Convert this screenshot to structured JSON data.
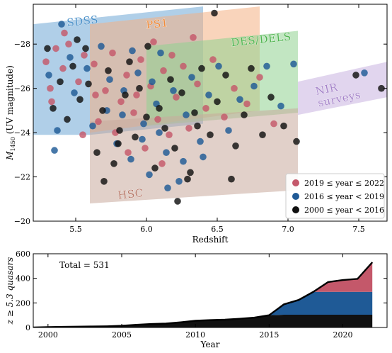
{
  "chart_data": [
    {
      "type": "scatter",
      "xlabel": "Redshift",
      "ylabel_main": "M",
      "ylabel_sub": "1450",
      "ylabel_rest": " (UV magnitude)",
      "xlim": [
        5.2,
        7.7
      ],
      "ylim": [
        -20,
        -29.8
      ],
      "y_inverted": true,
      "xticks": [
        5.5,
        6.0,
        6.5,
        7.0,
        7.5
      ],
      "yticks": [
        -20,
        -22,
        -24,
        -26,
        -28
      ],
      "xtick_labels": [
        "5.5",
        "6.0",
        "6.5",
        "7.0",
        "7.5"
      ],
      "ytick_labels": [
        "−20",
        "−22",
        "−24",
        "−26",
        "−28"
      ],
      "survey_regions": [
        {
          "name": "SDSS",
          "color": "#6fa8d6",
          "text_color": "#4a90c9",
          "polygon": [
            [
              5.2,
              -28.9
            ],
            [
              6.4,
              -29.7
            ],
            [
              6.4,
              -24.4
            ],
            [
              5.6,
              -23.9
            ],
            [
              5.2,
              -23.9
            ]
          ],
          "label_at": [
            5.44,
            -28.8
          ],
          "rotate": -6
        },
        {
          "name": "PS1",
          "color": "#f4b183",
          "text_color": "#f08c3c",
          "polygon": [
            [
              5.6,
              -28.9
            ],
            [
              6.8,
              -29.7
            ],
            [
              6.8,
              -25.0
            ],
            [
              5.6,
              -24.0
            ]
          ],
          "label_at": [
            6.0,
            -28.7
          ],
          "rotate": -6
        },
        {
          "name": "DES/DELS",
          "color": "#8fd18f",
          "text_color": "#4fb54f",
          "polygon": [
            [
              6.0,
              -27.9
            ],
            [
              7.07,
              -28.6
            ],
            [
              7.07,
              -24.9
            ],
            [
              6.0,
              -24.3
            ]
          ],
          "label_at": [
            6.6,
            -27.9
          ],
          "rotate": -6
        },
        {
          "name": "HSC",
          "color": "#c9a99c",
          "text_color": "#b87a6a",
          "polygon": [
            [
              5.6,
              -24.5
            ],
            [
              7.07,
              -25.1
            ],
            [
              7.07,
              -21.4
            ],
            [
              5.6,
              -20.8
            ]
          ],
          "label_at": [
            5.8,
            -21.0
          ],
          "rotate": -6
        },
        {
          "name": "NIR\nsurveys",
          "color": "#c9b3e0",
          "text_color": "#a583c9",
          "polygon": [
            [
              7.07,
              -26.3
            ],
            [
              7.7,
              -27.2
            ],
            [
              7.7,
              -25.6
            ],
            [
              7.07,
              -24.8
            ]
          ],
          "label_at": [
            7.2,
            -25.7
          ],
          "rotate": -12
        }
      ],
      "series": [
        {
          "name": "2019 ≤ year ≤ 2022",
          "color": "#c4586a"
        },
        {
          "name": "2016 ≤ year < 2019",
          "color": "#1f5a96"
        },
        {
          "name": "2000 ≤ year < 2016",
          "color": "#111111"
        }
      ],
      "points": [
        [
          5.29,
          -27.2,
          0
        ],
        [
          5.32,
          -26.0,
          0
        ],
        [
          5.36,
          -27.8,
          0
        ],
        [
          5.33,
          -25.4,
          0
        ],
        [
          5.41,
          -26.9,
          0
        ],
        [
          5.45,
          -28.0,
          0
        ],
        [
          5.52,
          -26.3,
          0
        ],
        [
          5.56,
          -27.5,
          0
        ],
        [
          5.63,
          -27.1,
          0
        ],
        [
          5.66,
          -24.5,
          0
        ],
        [
          5.71,
          -25.9,
          0
        ],
        [
          5.76,
          -27.6,
          0
        ],
        [
          5.82,
          -25.4,
          0
        ],
        [
          5.86,
          -26.6,
          0
        ],
        [
          5.91,
          -24.9,
          0
        ],
        [
          5.96,
          -27.3,
          0
        ],
        [
          5.99,
          -23.3,
          0
        ],
        [
          6.03,
          -26.1,
          0
        ],
        [
          6.08,
          -24.6,
          0
        ],
        [
          6.12,
          -26.8,
          0
        ],
        [
          6.16,
          -23.9,
          0
        ],
        [
          6.21,
          -25.6,
          0
        ],
        [
          6.26,
          -27.0,
          0
        ],
        [
          6.3,
          -24.2,
          0
        ],
        [
          6.36,
          -26.2,
          0
        ],
        [
          6.42,
          -25.1,
          0
        ],
        [
          6.47,
          -27.3,
          0
        ],
        [
          6.55,
          -24.7,
          0
        ],
        [
          6.62,
          -26.0,
          0
        ],
        [
          6.71,
          -25.3,
          0
        ],
        [
          6.8,
          -26.5,
          0
        ],
        [
          6.9,
          -24.4,
          0
        ],
        [
          5.42,
          -28.5,
          0
        ],
        [
          5.93,
          -25.7,
          0
        ],
        [
          6.05,
          -28.1,
          0
        ],
        [
          5.78,
          -24.0,
          0
        ],
        [
          6.18,
          -27.5,
          0
        ],
        [
          5.64,
          -25.7,
          0
        ],
        [
          6.33,
          -28.3,
          0
        ],
        [
          5.55,
          -23.9,
          0
        ],
        [
          6.11,
          -22.6,
          0
        ],
        [
          5.87,
          -23.1,
          0
        ],
        [
          5.31,
          -26.6,
          1
        ],
        [
          5.37,
          -24.1,
          1
        ],
        [
          5.46,
          -27.4,
          1
        ],
        [
          5.49,
          -25.8,
          1
        ],
        [
          5.58,
          -26.9,
          1
        ],
        [
          5.62,
          -24.3,
          1
        ],
        [
          5.68,
          -27.9,
          1
        ],
        [
          5.74,
          -26.4,
          1
        ],
        [
          5.79,
          -23.5,
          1
        ],
        [
          5.84,
          -25.9,
          1
        ],
        [
          5.89,
          -22.8,
          1
        ],
        [
          5.94,
          -26.7,
          1
        ],
        [
          5.98,
          -24.4,
          1
        ],
        [
          6.02,
          -22.1,
          1
        ],
        [
          6.07,
          -25.3,
          1
        ],
        [
          6.1,
          -27.6,
          1
        ],
        [
          6.14,
          -23.1,
          1
        ],
        [
          6.19,
          -25.9,
          1
        ],
        [
          6.23,
          -21.8,
          1
        ],
        [
          6.28,
          -24.8,
          1
        ],
        [
          6.32,
          -26.5,
          1
        ],
        [
          6.38,
          -23.6,
          1
        ],
        [
          6.44,
          -25.7,
          1
        ],
        [
          6.51,
          -27.0,
          1
        ],
        [
          6.58,
          -24.1,
          1
        ],
        [
          6.66,
          -25.5,
          1
        ],
        [
          6.76,
          -26.1,
          1
        ],
        [
          6.85,
          -27.0,
          1
        ],
        [
          6.95,
          -25.2,
          1
        ],
        [
          7.04,
          -27.1,
          1
        ],
        [
          7.54,
          -26.7,
          1
        ],
        [
          5.4,
          -28.9,
          1
        ],
        [
          5.97,
          -23.7,
          1
        ],
        [
          6.04,
          -26.3,
          1
        ],
        [
          5.72,
          -25.0,
          1
        ],
        [
          6.26,
          -22.7,
          1
        ],
        [
          5.9,
          -27.7,
          1
        ],
        [
          6.15,
          -21.5,
          1
        ],
        [
          5.83,
          -24.8,
          1
        ],
        [
          6.4,
          -22.9,
          1
        ],
        [
          5.35,
          -23.2,
          1
        ],
        [
          6.09,
          -24.0,
          1
        ],
        [
          5.3,
          -27.8,
          2
        ],
        [
          5.34,
          -25.1,
          2
        ],
        [
          5.39,
          -26.3,
          2
        ],
        [
          5.44,
          -24.6,
          2
        ],
        [
          5.48,
          -27.0,
          2
        ],
        [
          5.53,
          -25.5,
          2
        ],
        [
          5.59,
          -26.2,
          2
        ],
        [
          5.65,
          -23.1,
          2
        ],
        [
          5.69,
          -25.0,
          2
        ],
        [
          5.73,
          -26.8,
          2
        ],
        [
          5.77,
          -22.6,
          2
        ],
        [
          5.81,
          -24.1,
          2
        ],
        [
          5.85,
          -25.7,
          2
        ],
        [
          5.88,
          -27.2,
          2
        ],
        [
          5.92,
          -23.8,
          2
        ],
        [
          5.95,
          -26.0,
          2
        ],
        [
          6.0,
          -24.7,
          2
        ],
        [
          6.06,
          -22.4,
          2
        ],
        [
          6.09,
          -25.1,
          2
        ],
        [
          6.13,
          -24.2,
          2
        ],
        [
          6.17,
          -26.4,
          2
        ],
        [
          6.2,
          -23.3,
          2
        ],
        [
          6.25,
          -25.8,
          2
        ],
        [
          6.29,
          -21.9,
          2
        ],
        [
          6.34,
          -24.9,
          2
        ],
        [
          6.39,
          -26.9,
          2
        ],
        [
          6.45,
          -23.9,
          2
        ],
        [
          6.5,
          -25.4,
          2
        ],
        [
          6.56,
          -26.6,
          2
        ],
        [
          6.63,
          -23.4,
          2
        ],
        [
          6.69,
          -24.8,
          2
        ],
        [
          6.74,
          -26.9,
          2
        ],
        [
          6.82,
          -23.9,
          2
        ],
        [
          6.88,
          -25.6,
          2
        ],
        [
          6.97,
          -24.3,
          2
        ],
        [
          7.06,
          -23.6,
          2
        ],
        [
          7.48,
          -26.6,
          2
        ],
        [
          7.66,
          -26.0,
          2
        ],
        [
          5.51,
          -28.2,
          2
        ],
        [
          6.01,
          -27.9,
          2
        ],
        [
          6.31,
          -22.2,
          2
        ],
        [
          5.7,
          -21.8,
          2
        ],
        [
          6.22,
          -20.9,
          2
        ],
        [
          6.6,
          -21.9,
          2
        ],
        [
          5.8,
          -23.5,
          2
        ],
        [
          6.48,
          -29.4,
          2
        ],
        [
          5.57,
          -27.8,
          2
        ],
        [
          6.36,
          -24.3,
          2
        ]
      ],
      "legend_position": "lower-right"
    },
    {
      "type": "area",
      "xlabel": "Year",
      "ylabel_main": "z ≥ 5.3 quasars",
      "xlim": [
        1999,
        2023
      ],
      "ylim": [
        0,
        600
      ],
      "xticks": [
        2000,
        2005,
        2010,
        2015,
        2020
      ],
      "yticks": [
        0,
        200,
        400,
        600
      ],
      "xtick_labels": [
        "2000",
        "2005",
        "2010",
        "2015",
        "2020"
      ],
      "ytick_labels": [
        "0",
        "200",
        "400",
        "600"
      ],
      "annotation": "Total = 531",
      "x": [
        1999,
        2000,
        2001,
        2002,
        2003,
        2004,
        2005,
        2006,
        2007,
        2008,
        2009,
        2010,
        2011,
        2012,
        2013,
        2014,
        2015,
        2016,
        2017,
        2018,
        2019,
        2020,
        2021,
        2022
      ],
      "series": [
        {
          "name": "2000 ≤ year < 2016",
          "color": "#111111",
          "values": [
            0,
            3,
            5,
            7,
            8,
            10,
            14,
            22,
            28,
            32,
            42,
            55,
            60,
            64,
            71,
            80,
            100,
            104,
            104,
            104,
            104,
            104,
            104,
            104
          ]
        },
        {
          "name": "2016 ≤ year < 2019",
          "color": "#1f5a96",
          "values": [
            0,
            0,
            0,
            0,
            0,
            0,
            0,
            0,
            0,
            0,
            0,
            0,
            0,
            0,
            0,
            0,
            0,
            84,
            120,
            186,
            186,
            186,
            186,
            186
          ]
        },
        {
          "name": "2019 ≤ year ≤ 2022",
          "color": "#c4586a",
          "values": [
            0,
            0,
            0,
            0,
            0,
            0,
            0,
            0,
            0,
            0,
            0,
            0,
            0,
            0,
            0,
            0,
            0,
            0,
            0,
            0,
            80,
            96,
            106,
            241
          ]
        }
      ],
      "total_line": [
        0,
        3,
        5,
        7,
        8,
        10,
        14,
        22,
        28,
        32,
        42,
        55,
        60,
        64,
        71,
        80,
        100,
        188,
        224,
        290,
        370,
        386,
        396,
        531
      ]
    }
  ]
}
